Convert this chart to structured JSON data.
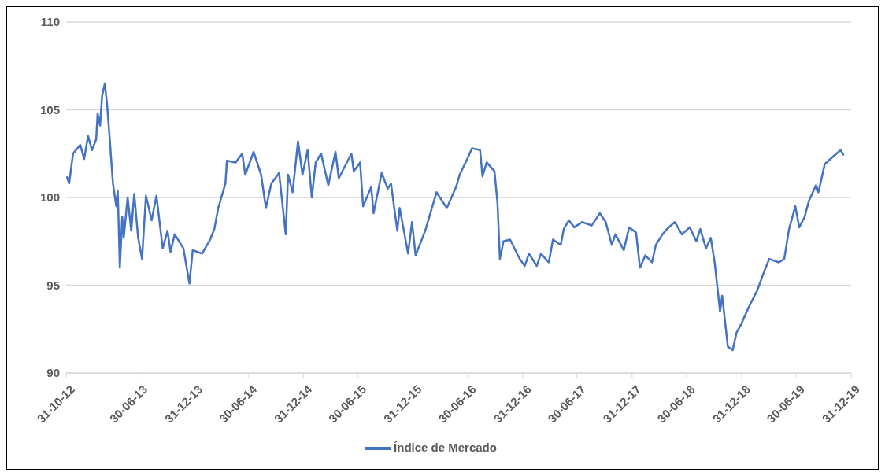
{
  "chart_data": {
    "type": "line",
    "x": [
      "2012-11-02",
      "2012-11-10",
      "2012-11-23",
      "2012-12-17",
      "2012-12-30",
      "2013-01-12",
      "2013-01-25",
      "2013-02-08",
      "2013-02-13",
      "2013-02-21",
      "2013-02-28",
      "2013-03-09",
      "2013-03-17",
      "2013-03-25",
      "2013-04-05",
      "2013-04-16",
      "2013-04-21",
      "2013-04-28",
      "2013-05-06",
      "2013-05-11",
      "2013-05-24",
      "2013-06-05",
      "2013-06-15",
      "2013-06-28",
      "2013-07-11",
      "2013-07-24",
      "2013-08-12",
      "2013-08-28",
      "2013-09-18",
      "2013-10-04",
      "2013-10-14",
      "2013-10-28",
      "2013-11-26",
      "2013-12-16",
      "2013-12-27",
      "2014-01-27",
      "2014-02-23",
      "2014-03-09",
      "2014-03-22",
      "2014-04-15",
      "2014-04-20",
      "2014-05-19",
      "2014-06-10",
      "2014-06-20",
      "2014-07-18",
      "2014-08-12",
      "2014-08-28",
      "2014-09-15",
      "2014-10-11",
      "2014-11-02",
      "2014-11-10",
      "2014-11-25",
      "2014-12-13",
      "2014-12-28",
      "2015-01-14",
      "2015-01-28",
      "2015-02-10",
      "2015-02-28",
      "2015-03-24",
      "2015-04-17",
      "2015-04-28",
      "2015-06-09",
      "2015-06-17",
      "2015-07-08",
      "2015-07-18",
      "2015-08-14",
      "2015-08-22",
      "2015-09-18",
      "2015-10-08",
      "2015-10-19",
      "2015-11-09",
      "2015-11-17",
      "2015-12-15",
      "2015-12-28",
      "2016-01-09",
      "2016-02-10",
      "2016-03-19",
      "2016-04-22",
      "2016-05-23",
      "2016-06-04",
      "2016-07-02",
      "2016-07-15",
      "2016-08-11",
      "2016-08-19",
      "2016-09-02",
      "2016-09-28",
      "2016-10-08",
      "2016-10-16",
      "2016-10-28",
      "2016-11-19",
      "2016-12-21",
      "2017-01-07",
      "2017-01-21",
      "2017-02-16",
      "2017-03-02",
      "2017-03-28",
      "2017-04-11",
      "2017-05-07",
      "2017-05-17",
      "2017-06-03",
      "2017-06-21",
      "2017-07-17",
      "2017-08-18",
      "2017-09-14",
      "2017-10-04",
      "2017-10-24",
      "2017-11-05",
      "2017-12-03",
      "2017-12-21",
      "2018-01-13",
      "2018-01-26",
      "2018-02-13",
      "2018-03-07",
      "2018-03-20",
      "2018-04-11",
      "2018-04-26",
      "2018-05-22",
      "2018-06-15",
      "2018-07-11",
      "2018-08-02",
      "2018-08-15",
      "2018-09-03",
      "2018-09-19",
      "2018-10-02",
      "2018-10-20",
      "2018-10-27",
      "2018-11-15",
      "2018-12-01",
      "2018-12-14",
      "2018-12-30",
      "2019-01-25",
      "2019-02-21",
      "2019-03-12",
      "2019-04-02",
      "2019-05-04",
      "2019-05-22",
      "2019-06-07",
      "2019-06-28",
      "2019-07-11",
      "2019-07-29",
      "2019-08-12",
      "2019-09-05",
      "2019-09-13",
      "2019-10-04",
      "2019-11-05",
      "2019-11-26",
      "2019-12-06"
    ],
    "series": [
      {
        "name": "Índice de Mercado",
        "color": "#4472c4",
        "values": [
          101.2,
          100.8,
          102.5,
          103.0,
          102.2,
          103.5,
          102.7,
          103.3,
          104.8,
          104.1,
          105.8,
          106.5,
          105.2,
          103.4,
          100.8,
          99.5,
          100.4,
          96.0,
          98.9,
          97.7,
          100.0,
          98.1,
          100.2,
          97.7,
          96.5,
          100.1,
          98.7,
          100.1,
          97.1,
          98.1,
          96.9,
          97.9,
          97.1,
          95.1,
          97.0,
          96.8,
          97.6,
          98.2,
          99.4,
          100.8,
          102.1,
          102.0,
          102.5,
          101.3,
          102.6,
          101.3,
          99.4,
          100.8,
          101.4,
          97.9,
          101.3,
          100.3,
          103.2,
          101.3,
          102.7,
          100.0,
          102.0,
          102.5,
          100.7,
          102.6,
          101.1,
          102.5,
          101.5,
          102.0,
          99.5,
          100.6,
          99.1,
          101.4,
          100.5,
          100.8,
          98.1,
          99.4,
          96.8,
          98.6,
          96.7,
          98.1,
          100.3,
          99.4,
          100.6,
          101.3,
          102.3,
          102.8,
          102.7,
          101.2,
          102.0,
          101.5,
          99.7,
          96.5,
          97.5,
          97.6,
          96.5,
          96.1,
          96.8,
          96.1,
          96.8,
          96.3,
          97.6,
          97.3,
          98.2,
          98.7,
          98.3,
          98.6,
          98.4,
          99.1,
          98.6,
          97.3,
          97.9,
          97.0,
          98.3,
          98.0,
          96.0,
          96.7,
          96.3,
          97.3,
          97.9,
          98.2,
          98.6,
          97.9,
          98.3,
          97.5,
          98.2,
          97.1,
          97.7,
          96.3,
          93.5,
          94.4,
          91.5,
          91.3,
          92.3,
          92.8,
          93.8,
          94.7,
          95.6,
          96.5,
          96.3,
          96.5,
          98.2,
          99.5,
          98.3,
          98.9,
          99.8,
          100.7,
          100.3,
          101.9,
          102.4,
          102.7,
          102.4
        ]
      }
    ],
    "xlim": [
      "2012-10-31",
      "2019-12-31"
    ],
    "xticks": [
      {
        "value": "2012-10-31",
        "label": "31-10-12"
      },
      {
        "value": "2013-06-30",
        "label": "30-06-13"
      },
      {
        "value": "2013-12-31",
        "label": "31-12-13"
      },
      {
        "value": "2014-06-30",
        "label": "30-06-14"
      },
      {
        "value": "2014-12-31",
        "label": "31-12-14"
      },
      {
        "value": "2015-06-30",
        "label": "30-06-15"
      },
      {
        "value": "2015-12-31",
        "label": "31-12-15"
      },
      {
        "value": "2016-06-30",
        "label": "30-06-16"
      },
      {
        "value": "2016-12-31",
        "label": "31-12-16"
      },
      {
        "value": "2017-06-30",
        "label": "30-06-17"
      },
      {
        "value": "2017-12-31",
        "label": "31-12-17"
      },
      {
        "value": "2018-06-30",
        "label": "30-06-18"
      },
      {
        "value": "2018-12-31",
        "label": "31-12-18"
      },
      {
        "value": "2019-06-30",
        "label": "30-06-19"
      },
      {
        "value": "2019-12-31",
        "label": "31-12-19"
      }
    ],
    "ylim": [
      90,
      110
    ],
    "yticks": [
      90,
      95,
      100,
      105,
      110
    ],
    "grid": "y",
    "legend": "bottom",
    "marker": "none",
    "line_style": "solid"
  }
}
